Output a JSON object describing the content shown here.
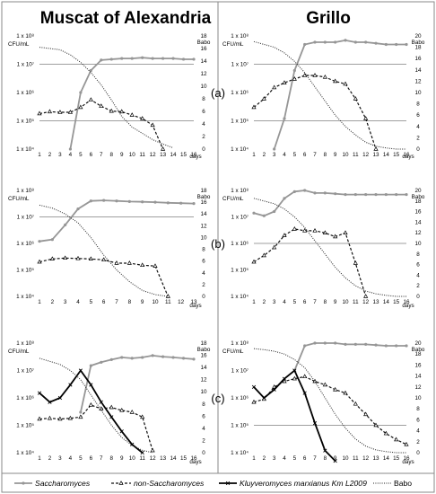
{
  "figure": {
    "column_titles": [
      "Muscat of Alexandria",
      "Grillo"
    ],
    "panel_letters": [
      "(a)",
      "(b)",
      "(c)"
    ],
    "left_axis_unit": "CFU/mL",
    "right_axis_unit": "Babo",
    "x_axis_unit": "days",
    "left_ticks": [
      "1 x 10⁴",
      "1 x 10⁵",
      "1 x 10⁶",
      "1 x 10⁷",
      "1 x 10⁸"
    ],
    "legend": [
      {
        "label": "Saccharomyces",
        "style": "saccharomyces"
      },
      {
        "label": "non-Saccharomyces",
        "style": "nonsacch"
      },
      {
        "label": "Kluyveromyces marxianus Km L2009",
        "style": "kluyvero"
      },
      {
        "label": "Babo",
        "style": "babo"
      }
    ]
  },
  "chart_data": [
    {
      "type": "line",
      "panel": "(a)",
      "column": "Muscat of Alexandria",
      "xlabel": "days",
      "ylabel": "CFU/mL",
      "y2label": "Babo",
      "x": [
        1,
        2,
        3,
        4,
        5,
        6,
        7,
        8,
        9,
        10,
        11,
        12,
        13,
        14,
        15,
        16
      ],
      "ylim": [
        10000,
        100000000
      ],
      "yscale": "log",
      "y2lim": [
        0,
        18
      ],
      "y2ticks": [
        0,
        2,
        4,
        6,
        8,
        10,
        12,
        14,
        16,
        18
      ],
      "gridlines": [
        100000,
        10000000
      ],
      "series": [
        {
          "name": "Saccharomyces",
          "axis": "left",
          "x": [
            4,
            5,
            6,
            7,
            8,
            9,
            10,
            11,
            12,
            13,
            14,
            15,
            16
          ],
          "values": [
            10000,
            1000000,
            6000000,
            14000000,
            15000000,
            16000000,
            16000000,
            17000000,
            16000000,
            16000000,
            16000000,
            15000000,
            15000000
          ]
        },
        {
          "name": "non-Saccharomyces",
          "axis": "left",
          "x": [
            1,
            2,
            3,
            4,
            5,
            6,
            7,
            8,
            9,
            10,
            11,
            12,
            13
          ],
          "values": [
            180000,
            210000,
            200000,
            200000,
            300000,
            550000,
            330000,
            220000,
            210000,
            160000,
            120000,
            70000,
            10000
          ]
        },
        {
          "name": "Babo",
          "axis": "right",
          "x": [
            1,
            2,
            3,
            4,
            5,
            6,
            7,
            8,
            9,
            10,
            11,
            12,
            13,
            14
          ],
          "values": [
            16.2,
            16.0,
            15.8,
            15.0,
            13.8,
            12.2,
            10.2,
            7.8,
            5.2,
            3.5,
            2.5,
            1.5,
            0.8,
            0.2
          ]
        }
      ]
    },
    {
      "type": "line",
      "panel": "(a)",
      "column": "Grillo",
      "xlabel": "days",
      "ylabel": "CFU/mL",
      "y2label": "Babo",
      "x": [
        1,
        2,
        3,
        4,
        5,
        6,
        7,
        8,
        9,
        10,
        11,
        12,
        13,
        14,
        15,
        16
      ],
      "ylim": [
        10000,
        100000000
      ],
      "yscale": "log",
      "y2lim": [
        0,
        20
      ],
      "y2ticks": [
        0,
        2,
        4,
        6,
        8,
        10,
        12,
        14,
        16,
        18,
        20
      ],
      "gridlines": [
        100000,
        10000000
      ],
      "series": [
        {
          "name": "Saccharomyces",
          "axis": "left",
          "x": [
            3,
            4,
            5,
            6,
            7,
            8,
            9,
            10,
            11,
            12,
            13,
            14,
            15,
            16
          ],
          "values": [
            10000,
            120000,
            6000000,
            50000000,
            60000000,
            60000000,
            60000000,
            70000000,
            60000000,
            60000000,
            55000000,
            50000000,
            50000000,
            50000000
          ]
        },
        {
          "name": "non-Saccharomyces",
          "axis": "left",
          "x": [
            1,
            2,
            3,
            4,
            5,
            6,
            7,
            8,
            9,
            10,
            11,
            12,
            13
          ],
          "values": [
            300000,
            600000,
            1500000,
            2200000,
            3000000,
            4000000,
            4000000,
            3500000,
            2500000,
            2000000,
            600000,
            120000,
            10000
          ]
        },
        {
          "name": "Babo",
          "axis": "right",
          "x": [
            1,
            2,
            3,
            4,
            5,
            6,
            7,
            8,
            9,
            10,
            11,
            12,
            13,
            14,
            15,
            16
          ],
          "values": [
            19.0,
            18.5,
            18.0,
            17.0,
            15.5,
            13.5,
            11.0,
            8.5,
            6.0,
            4.0,
            2.5,
            1.2,
            0.5,
            0.2,
            0.0,
            0.0
          ]
        }
      ]
    },
    {
      "type": "line",
      "panel": "(b)",
      "column": "Muscat of Alexandria",
      "xlabel": "days",
      "ylabel": "CFU/mL",
      "y2label": "Babo",
      "x": [
        1,
        2,
        3,
        4,
        5,
        6,
        7,
        8,
        9,
        10,
        11,
        12,
        13
      ],
      "ylim": [
        10000,
        100000000
      ],
      "yscale": "log",
      "y2lim": [
        0,
        18
      ],
      "y2ticks": [
        0,
        2,
        4,
        6,
        8,
        10,
        12,
        14,
        16,
        18
      ],
      "gridlines": [
        10000000
      ],
      "series": [
        {
          "name": "Saccharomyces",
          "axis": "left",
          "x": [
            1,
            2,
            3,
            4,
            5,
            6,
            7,
            8,
            9,
            10,
            11,
            12,
            13
          ],
          "values": [
            1200000,
            1400000,
            5000000,
            20000000,
            40000000,
            42000000,
            40000000,
            38000000,
            37000000,
            36000000,
            34000000,
            33000000,
            32000000
          ]
        },
        {
          "name": "non-Saccharomyces",
          "axis": "left",
          "x": [
            1,
            2,
            3,
            4,
            5,
            6,
            7,
            8,
            9,
            10,
            11
          ],
          "values": [
            200000,
            260000,
            280000,
            270000,
            260000,
            240000,
            180000,
            180000,
            150000,
            140000,
            10000
          ]
        },
        {
          "name": "Babo",
          "axis": "right",
          "x": [
            1,
            2,
            3,
            4,
            5,
            6,
            7,
            8,
            9,
            10,
            11
          ],
          "values": [
            15.5,
            15.0,
            14.0,
            12.5,
            10.0,
            7.0,
            4.5,
            2.5,
            1.0,
            0.3,
            0.0
          ]
        }
      ]
    },
    {
      "type": "line",
      "panel": "(b)",
      "column": "Grillo",
      "xlabel": "days",
      "ylabel": "CFU/mL",
      "y2label": "Babo",
      "x": [
        1,
        2,
        3,
        4,
        5,
        6,
        7,
        8,
        9,
        10,
        11,
        12,
        13,
        14,
        15,
        16
      ],
      "ylim": [
        10000,
        100000000
      ],
      "yscale": "log",
      "y2lim": [
        0,
        20
      ],
      "y2ticks": [
        0,
        2,
        4,
        6,
        8,
        10,
        12,
        14,
        16,
        18,
        20
      ],
      "gridlines": [
        1000000
      ],
      "series": [
        {
          "name": "Saccharomyces",
          "axis": "left",
          "x": [
            1,
            2,
            3,
            4,
            5,
            6,
            7,
            8,
            9,
            10,
            11,
            12,
            13,
            14,
            15,
            16
          ],
          "values": [
            14000000,
            11000000,
            16000000,
            50000000,
            90000000,
            100000000,
            80000000,
            80000000,
            75000000,
            70000000,
            70000000,
            70000000,
            70000000,
            70000000,
            70000000,
            70000000
          ]
        },
        {
          "name": "non-Saccharomyces",
          "axis": "left",
          "x": [
            1,
            2,
            3,
            4,
            5,
            6,
            7,
            8,
            9,
            10,
            11,
            12
          ],
          "values": [
            200000,
            350000,
            700000,
            2000000,
            3500000,
            3000000,
            3000000,
            2500000,
            1800000,
            2500000,
            180000,
            10000
          ]
        },
        {
          "name": "Babo",
          "axis": "right",
          "x": [
            1,
            2,
            3,
            4,
            5,
            6,
            7,
            8,
            9,
            10,
            11,
            12,
            13,
            14,
            15,
            16
          ],
          "values": [
            18.5,
            18.0,
            17.5,
            16.5,
            15.0,
            13.0,
            10.5,
            8.0,
            5.5,
            3.5,
            2.0,
            1.0,
            0.5,
            0.2,
            0.0,
            0.0
          ]
        }
      ]
    },
    {
      "type": "line",
      "panel": "(c)",
      "column": "Muscat of Alexandria",
      "xlabel": "days",
      "ylabel": "CFU/mL",
      "y2label": "Babo",
      "x": [
        1,
        2,
        3,
        4,
        5,
        6,
        7,
        8,
        9,
        10,
        11,
        12,
        13,
        14,
        15,
        16
      ],
      "ylim": [
        10000,
        100000000
      ],
      "yscale": "log",
      "y2lim": [
        0,
        18
      ],
      "y2ticks": [
        0,
        2,
        4,
        6,
        8,
        10,
        12,
        14,
        16,
        18
      ],
      "gridlines": [],
      "series": [
        {
          "name": "Saccharomyces",
          "axis": "left",
          "x": [
            5,
            6,
            7,
            8,
            9,
            10,
            11,
            12,
            13,
            14,
            15,
            16
          ],
          "values": [
            300000,
            15000000,
            20000000,
            25000000,
            30000000,
            28000000,
            30000000,
            35000000,
            32000000,
            30000000,
            28000000,
            26000000
          ]
        },
        {
          "name": "non-Saccharomyces",
          "axis": "left",
          "x": [
            1,
            2,
            3,
            4,
            5,
            6,
            7,
            8,
            9,
            10,
            11,
            12
          ],
          "values": [
            170000,
            180000,
            170000,
            180000,
            200000,
            550000,
            400000,
            450000,
            350000,
            300000,
            200000,
            12000
          ]
        },
        {
          "name": "Kluyveromyces marxianus Km L2009",
          "axis": "left",
          "x": [
            1,
            2,
            3,
            4,
            5,
            6,
            7,
            8,
            9,
            10,
            11
          ],
          "values": [
            1500000,
            700000,
            1000000,
            3000000,
            10000000,
            3000000,
            700000,
            200000,
            60000,
            20000,
            10000
          ]
        },
        {
          "name": "Babo",
          "axis": "right",
          "x": [
            1,
            2,
            3,
            4,
            5,
            6,
            7,
            8,
            9,
            10,
            11,
            12
          ],
          "values": [
            15.5,
            15.0,
            14.5,
            13.5,
            12.0,
            9.5,
            7.0,
            4.5,
            2.5,
            1.2,
            0.4,
            0.0
          ]
        }
      ]
    },
    {
      "type": "line",
      "panel": "(c)",
      "column": "Grillo",
      "xlabel": "days",
      "ylabel": "CFU/mL",
      "y2label": "Babo",
      "x": [
        1,
        2,
        3,
        4,
        5,
        6,
        7,
        8,
        9,
        10,
        11,
        12,
        13,
        14,
        15,
        16
      ],
      "ylim": [
        10000,
        100000000
      ],
      "yscale": "log",
      "y2lim": [
        0,
        20
      ],
      "y2ticks": [
        0,
        2,
        4,
        6,
        8,
        10,
        12,
        14,
        16,
        18,
        20
      ],
      "gridlines": [
        100000
      ],
      "series": [
        {
          "name": "Saccharomyces",
          "axis": "left",
          "x": [
            5,
            6,
            7,
            8,
            9,
            10,
            11,
            12,
            13,
            14,
            15,
            16
          ],
          "values": [
            10000000,
            80000000,
            100000000,
            100000000,
            100000000,
            90000000,
            90000000,
            90000000,
            85000000,
            80000000,
            80000000,
            80000000
          ]
        },
        {
          "name": "non-Saccharomyces",
          "axis": "left",
          "x": [
            1,
            2,
            3,
            4,
            5,
            6,
            7,
            8,
            9,
            10,
            11,
            12,
            13,
            14,
            15,
            16
          ],
          "values": [
            700000,
            900000,
            2500000,
            4000000,
            5000000,
            6000000,
            4000000,
            3000000,
            2000000,
            1500000,
            600000,
            250000,
            100000,
            50000,
            30000,
            20000
          ]
        },
        {
          "name": "Kluyveromyces marxianus Km L2009",
          "axis": "left",
          "x": [
            1,
            2,
            3,
            4,
            5,
            6,
            7,
            8,
            9
          ],
          "values": [
            2500000,
            1000000,
            2000000,
            5000000,
            10000000,
            1500000,
            120000,
            12000,
            5000
          ]
        },
        {
          "name": "Babo",
          "axis": "right",
          "x": [
            1,
            2,
            3,
            4,
            5,
            6,
            7,
            8,
            9,
            10,
            11,
            12,
            13,
            14,
            15,
            16
          ],
          "values": [
            19.0,
            18.8,
            18.5,
            18.0,
            17.0,
            15.5,
            13.0,
            10.0,
            7.0,
            4.5,
            2.5,
            1.2,
            0.5,
            0.2,
            0.0,
            0.0
          ]
        }
      ]
    }
  ]
}
